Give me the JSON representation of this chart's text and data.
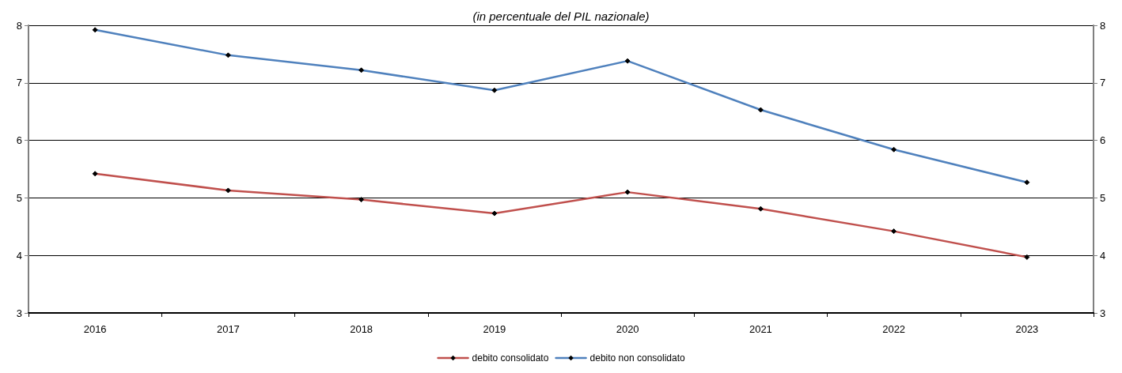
{
  "chart_data": {
    "type": "line",
    "subtitle": "(in percentuale del PIL nazionale)",
    "categories": [
      "2016",
      "2017",
      "2018",
      "2019",
      "2020",
      "2021",
      "2022",
      "2023"
    ],
    "series": [
      {
        "name": "debito consolidato",
        "color": "#c0504d",
        "values": [
          5.42,
          5.13,
          4.97,
          4.73,
          5.1,
          4.81,
          4.42,
          3.97
        ]
      },
      {
        "name": "debito non consolidato",
        "color": "#4f81bd",
        "values": [
          7.92,
          7.48,
          7.22,
          6.87,
          7.38,
          6.53,
          5.84,
          5.27
        ]
      }
    ],
    "ylim": [
      3,
      8
    ],
    "yticks": [
      3,
      4,
      5,
      6,
      7,
      8
    ],
    "y2lim": [
      3,
      8
    ],
    "y2ticks": [
      3,
      4,
      5,
      6,
      7,
      8
    ],
    "grid": "y",
    "legend": "bottom",
    "marker": "diamond",
    "line_style": "solid"
  }
}
